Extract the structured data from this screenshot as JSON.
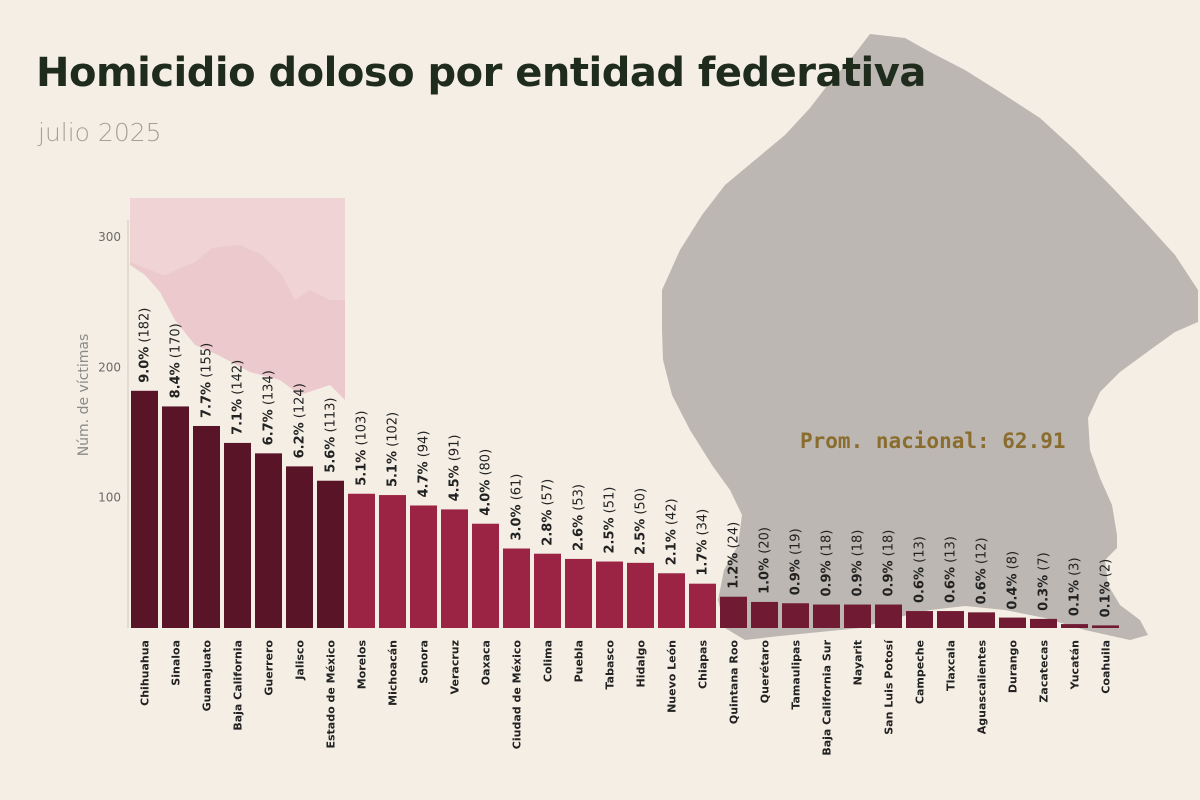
{
  "title": "Homicidio doloso por entidad federativa",
  "subtitle": "julio 2025",
  "colors": {
    "background": "#f4eee4",
    "bar_dark": "#5a1428",
    "bar_medium": "#9b2445",
    "bar_light": "#701b33",
    "map_gray": "#bcb7b2",
    "map_pink": "#e8c4c8",
    "avg_text": "#8a6d2e"
  },
  "chart_data": {
    "type": "bar",
    "title": "Homicidio doloso por entidad federativa",
    "subtitle": "julio 2025",
    "ylabel": "Núm. de víctimas",
    "xlabel": "",
    "ylim": [
      0,
      300
    ],
    "yticks": [
      100,
      200,
      300
    ],
    "grid": false,
    "categories": [
      "Chihuahua",
      "Sinaloa",
      "Guanajuato",
      "Baja California",
      "Guerrero",
      "Jalisco",
      "Estado de México",
      "Morelos",
      "Michoacán",
      "Sonora",
      "Veracruz",
      "Oaxaca",
      "Ciudad de México",
      "Colima",
      "Puebla",
      "Tabasco",
      "Hidalgo",
      "Nuevo León",
      "Chiapas",
      "Quintana Roo",
      "Querétaro",
      "Tamaulipas",
      "Baja California Sur",
      "Nayarit",
      "San Luis Potosí",
      "Campeche",
      "Tlaxcala",
      "Aguascalientes",
      "Durango",
      "Zacatecas",
      "Yucatán",
      "Coahuila"
    ],
    "values": [
      182,
      170,
      155,
      142,
      134,
      124,
      113,
      103,
      102,
      94,
      91,
      80,
      61,
      57,
      53,
      51,
      50,
      42,
      34,
      24,
      20,
      19,
      18,
      18,
      18,
      13,
      13,
      12,
      8,
      7,
      3,
      2
    ],
    "percents": [
      "9.0%",
      "8.4%",
      "7.7%",
      "7.1%",
      "6.7%",
      "6.2%",
      "5.6%",
      "5.1%",
      "5.1%",
      "4.7%",
      "4.5%",
      "4.0%",
      "3.0%",
      "2.8%",
      "2.6%",
      "2.5%",
      "2.5%",
      "2.1%",
      "1.7%",
      "1.2%",
      "1.0%",
      "0.9%",
      "0.9%",
      "0.9%",
      "0.9%",
      "0.6%",
      "0.6%",
      "0.6%",
      "0.4%",
      "0.3%",
      "0.1%",
      "0.1%"
    ],
    "annotation": "Prom. nacional: 62.91",
    "average": 62.91
  }
}
